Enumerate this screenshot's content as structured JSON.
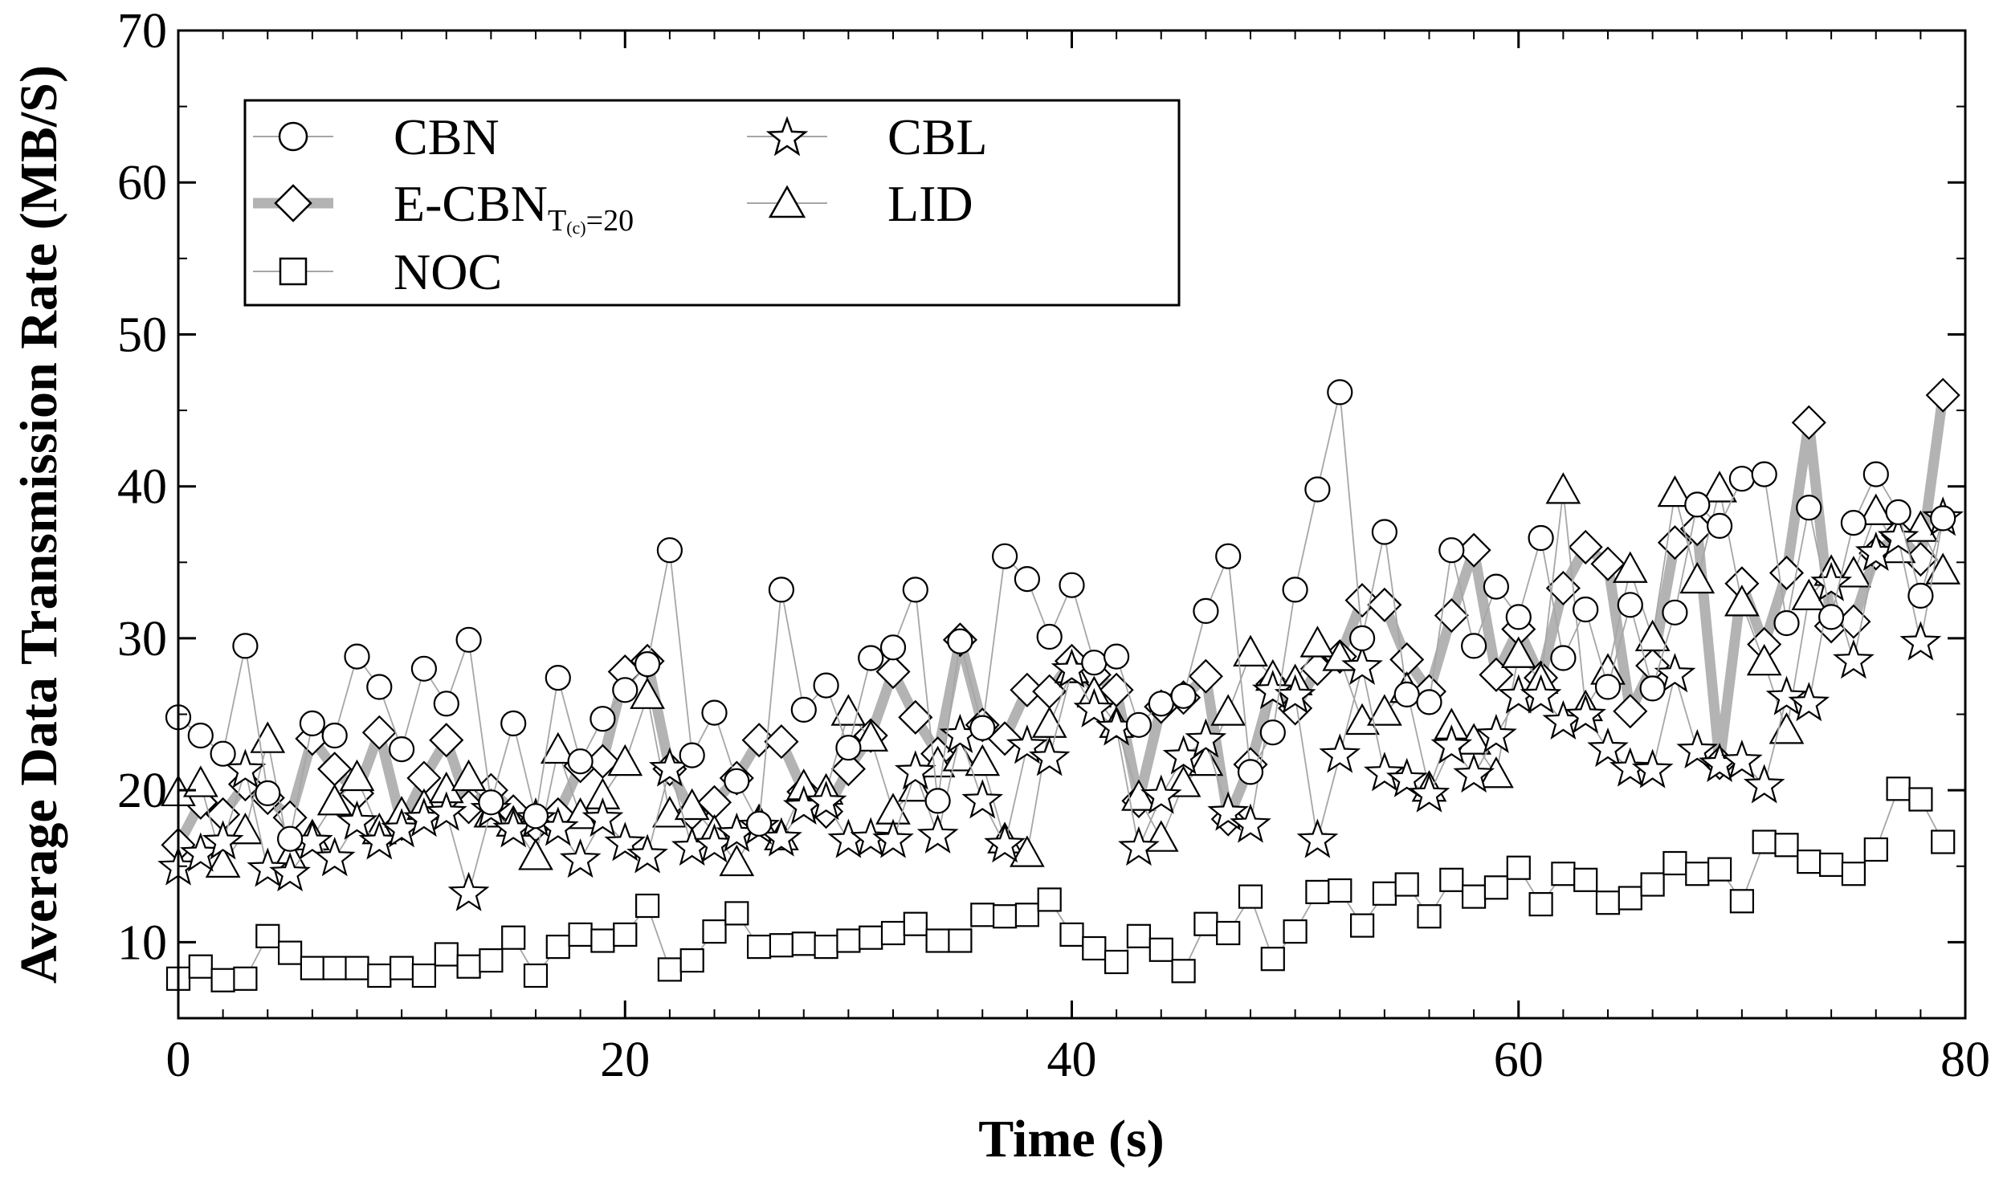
{
  "chart_data": {
    "type": "line",
    "title": "",
    "xlabel": "Time (s)",
    "ylabel": "Average Data Transmission Rate (MB/S)",
    "xlim": [
      0,
      80
    ],
    "ylim": [
      5,
      70
    ],
    "xticks": [
      0,
      20,
      40,
      60,
      80
    ],
    "yticks": [
      10,
      20,
      30,
      40,
      50,
      60,
      70
    ],
    "x_tick_labels": [
      "0",
      "20",
      "40",
      "60",
      "80"
    ],
    "y_tick_labels": [
      "10",
      "20",
      "30",
      "40",
      "50",
      "60",
      "70"
    ],
    "grid": false,
    "legend_position": "top-left",
    "legend": {
      "cbn": "CBN",
      "ecbn_main": "E-CBN",
      "ecbn_sub": "T",
      "ecbn_subsub": "(c)",
      "ecbn_tail": "=20",
      "noc": "NOC",
      "cbl": "CBL",
      "lid": "LID"
    },
    "series": [
      {
        "name": "CBN",
        "marker": "circle",
        "line": "thin",
        "x": [
          0,
          1,
          2,
          3,
          4,
          5,
          6,
          7,
          8,
          9,
          10,
          11,
          12,
          13,
          14,
          15,
          16,
          17,
          18,
          19,
          20,
          21,
          22,
          23,
          24,
          25,
          26,
          27,
          28,
          29,
          30,
          31,
          32,
          33,
          34,
          35,
          36,
          37,
          38,
          39,
          40,
          41,
          42,
          43,
          44,
          45,
          46,
          47,
          48,
          49,
          50,
          51,
          52,
          53,
          54,
          55,
          56,
          57,
          58,
          59,
          60,
          61,
          62,
          63,
          64,
          65,
          66,
          67,
          68,
          69,
          70,
          71,
          72,
          73,
          74,
          75,
          76,
          77,
          78,
          79
        ],
        "values": [
          24.8,
          23.6,
          22.4,
          29.5,
          19.8,
          16.8,
          24.4,
          23.6,
          28.8,
          26.8,
          22.7,
          28.0,
          25.7,
          29.9,
          19.2,
          24.4,
          18.3,
          27.4,
          21.9,
          24.7,
          26.6,
          28.3,
          35.8,
          22.3,
          25.1,
          20.6,
          17.8,
          33.2,
          25.3,
          26.9,
          22.8,
          28.7,
          29.4,
          33.2,
          19.3,
          29.8,
          24.1,
          35.4,
          33.9,
          30.1,
          33.5,
          28.4,
          28.8,
          24.3,
          25.7,
          26.2,
          31.8,
          35.4,
          21.2,
          23.8,
          33.2,
          39.8,
          46.2,
          30.0,
          37.0,
          26.3,
          25.8,
          35.8,
          29.5,
          33.4,
          31.4,
          36.6,
          28.7,
          31.9,
          26.8,
          32.2,
          26.7,
          31.7,
          38.8,
          37.4,
          40.5,
          40.8,
          31.0,
          38.6,
          31.4,
          37.6,
          40.8,
          38.3,
          32.8,
          37.9
        ]
      },
      {
        "name": "E-CBN_T(c)=20",
        "marker": "diamond",
        "line": "thick-gray",
        "x": [
          0,
          1,
          2,
          3,
          4,
          5,
          6,
          7,
          8,
          9,
          10,
          11,
          12,
          13,
          14,
          15,
          16,
          17,
          18,
          19,
          20,
          21,
          22,
          23,
          24,
          25,
          26,
          27,
          28,
          29,
          30,
          31,
          32,
          33,
          34,
          35,
          36,
          37,
          38,
          39,
          40,
          41,
          42,
          43,
          44,
          45,
          46,
          47,
          48,
          49,
          50,
          51,
          52,
          53,
          54,
          55,
          56,
          57,
          58,
          59,
          60,
          61,
          62,
          63,
          64,
          65,
          66,
          67,
          68,
          69,
          70,
          71,
          72,
          73,
          74,
          75,
          76,
          77,
          78,
          79
        ],
        "values": [
          16.4,
          19.2,
          18.4,
          20.4,
          19.5,
          18.2,
          23.4,
          21.4,
          19.8,
          23.8,
          17.8,
          20.8,
          23.3,
          18.9,
          20.0,
          18.6,
          17.7,
          18.4,
          21.6,
          21.9,
          27.8,
          28.5,
          21.4,
          18.5,
          19.2,
          20.8,
          23.3,
          23.2,
          19.9,
          18.6,
          21.4,
          23.6,
          27.8,
          24.8,
          22.4,
          29.9,
          24.3,
          23.4,
          26.6,
          26.5,
          28.5,
          27.6,
          26.6,
          19.3,
          25.5,
          26.1,
          27.5,
          18.1,
          21.7,
          27.0,
          25.4,
          28.0,
          28.8,
          32.5,
          32.2,
          28.6,
          26.5,
          31.5,
          35.8,
          27.6,
          30.6,
          27.4,
          33.3,
          36.0,
          34.9,
          25.2,
          28.2,
          36.3,
          37.2,
          21.8,
          33.6,
          29.6,
          34.3,
          44.2,
          30.8,
          31.1,
          35.6,
          36.8,
          35.2,
          46.0
        ]
      },
      {
        "name": "NOC",
        "marker": "square",
        "line": "thin",
        "x": [
          0,
          1,
          2,
          3,
          4,
          5,
          6,
          7,
          8,
          9,
          10,
          11,
          12,
          13,
          14,
          15,
          16,
          17,
          18,
          19,
          20,
          21,
          22,
          23,
          24,
          25,
          26,
          27,
          28,
          29,
          30,
          31,
          32,
          33,
          34,
          35,
          36,
          37,
          38,
          39,
          40,
          41,
          42,
          43,
          44,
          45,
          46,
          47,
          48,
          49,
          50,
          51,
          52,
          53,
          54,
          55,
          56,
          57,
          58,
          59,
          60,
          61,
          62,
          63,
          64,
          65,
          66,
          67,
          68,
          69,
          70,
          71,
          72,
          73,
          74,
          75,
          76,
          77,
          78,
          79
        ],
        "values": [
          7.6,
          8.4,
          7.5,
          7.6,
          10.4,
          9.3,
          8.3,
          8.3,
          8.3,
          7.8,
          8.3,
          7.8,
          9.2,
          8.4,
          8.8,
          10.3,
          7.8,
          9.7,
          10.5,
          10.1,
          10.5,
          12.4,
          8.2,
          8.8,
          10.7,
          11.9,
          9.7,
          9.8,
          9.9,
          9.7,
          10.1,
          10.3,
          10.6,
          11.2,
          10.1,
          10.1,
          11.8,
          11.7,
          11.8,
          12.8,
          10.5,
          9.6,
          8.7,
          10.4,
          9.5,
          8.1,
          11.2,
          10.6,
          13.0,
          8.9,
          10.7,
          13.3,
          13.4,
          11.1,
          13.2,
          13.8,
          11.7,
          14.1,
          13.0,
          13.6,
          14.9,
          12.5,
          14.5,
          14.1,
          12.6,
          12.9,
          13.8,
          15.2,
          14.5,
          14.8,
          12.7,
          16.6,
          16.4,
          15.3,
          15.1,
          14.5,
          16.1,
          20.1,
          19.4,
          16.6
        ]
      },
      {
        "name": "CBL",
        "marker": "star",
        "line": "thin",
        "x": [
          0,
          1,
          2,
          3,
          4,
          5,
          6,
          7,
          8,
          9,
          10,
          11,
          12,
          13,
          14,
          15,
          16,
          17,
          18,
          19,
          20,
          21,
          22,
          23,
          24,
          25,
          26,
          27,
          28,
          29,
          30,
          31,
          32,
          33,
          34,
          35,
          36,
          37,
          38,
          39,
          40,
          41,
          42,
          43,
          44,
          45,
          46,
          47,
          48,
          49,
          50,
          51,
          52,
          53,
          54,
          55,
          56,
          57,
          58,
          59,
          60,
          61,
          62,
          63,
          64,
          65,
          66,
          67,
          68,
          69,
          70,
          71,
          72,
          73,
          74,
          75,
          76,
          77,
          78,
          79
        ],
        "values": [
          14.9,
          15.8,
          16.6,
          21.3,
          14.8,
          14.5,
          16.6,
          15.5,
          17.9,
          16.6,
          17.4,
          18.1,
          18.5,
          13.2,
          18.7,
          17.4,
          18.1,
          17.5,
          15.4,
          18.1,
          16.5,
          15.7,
          21.4,
          16.2,
          16.4,
          17.1,
          17.6,
          16.8,
          18.9,
          19.2,
          16.7,
          16.8,
          16.7,
          21.2,
          17.0,
          23.6,
          19.3,
          16.4,
          22.9,
          22.1,
          27.9,
          25.3,
          24.1,
          16.2,
          19.6,
          22.2,
          23.3,
          18.5,
          17.7,
          26.5,
          26.2,
          16.7,
          22.3,
          28.1,
          21.1,
          20.7,
          19.7,
          22.9,
          21.0,
          23.6,
          26.2,
          26.2,
          24.5,
          24.9,
          22.7,
          21.4,
          21.3,
          27.6,
          22.6,
          21.7,
          21.9,
          20.3,
          26.1,
          25.7,
          33.6,
          28.5,
          35.6,
          36.6,
          29.7,
          37.9
        ]
      },
      {
        "name": "LID",
        "marker": "triangle",
        "line": "thin",
        "x": [
          0,
          1,
          2,
          3,
          4,
          5,
          6,
          7,
          8,
          9,
          10,
          11,
          12,
          13,
          14,
          15,
          16,
          17,
          18,
          19,
          20,
          21,
          22,
          23,
          24,
          25,
          26,
          27,
          28,
          29,
          30,
          31,
          32,
          33,
          34,
          35,
          36,
          37,
          38,
          39,
          40,
          41,
          42,
          43,
          44,
          45,
          46,
          47,
          48,
          49,
          50,
          51,
          52,
          53,
          54,
          55,
          56,
          57,
          58,
          59,
          60,
          61,
          62,
          63,
          64,
          65,
          66,
          67,
          68,
          69,
          70,
          71,
          72,
          73,
          74,
          75,
          76,
          77,
          78,
          79
        ],
        "values": [
          19.8,
          20.4,
          15.1,
          17.3,
          23.3,
          15.6,
          16.9,
          19.2,
          20.8,
          17.3,
          18.4,
          18.9,
          20.0,
          20.8,
          18.4,
          17.8,
          15.6,
          22.6,
          18.3,
          19.6,
          21.8,
          26.2,
          18.4,
          18.9,
          17.2,
          15.2,
          17.9,
          16.9,
          20.2,
          19.9,
          25.1,
          23.4,
          18.6,
          20.1,
          21.7,
          22.1,
          21.8,
          16.7,
          15.8,
          24.3,
          27.9,
          26.3,
          24.3,
          19.5,
          16.8,
          20.4,
          21.8,
          25.1,
          29.0,
          27.4,
          27.1,
          29.6,
          28.7,
          24.5,
          25.1,
          26.6,
          20.1,
          24.2,
          23.2,
          21.0,
          28.9,
          27.2,
          39.7,
          25.4,
          27.8,
          34.5,
          30.0,
          39.5,
          33.8,
          39.8,
          32.3,
          28.4,
          23.9,
          32.7,
          34.3,
          34.2,
          38.3,
          35.8,
          37.2,
          34.4
        ]
      }
    ]
  }
}
